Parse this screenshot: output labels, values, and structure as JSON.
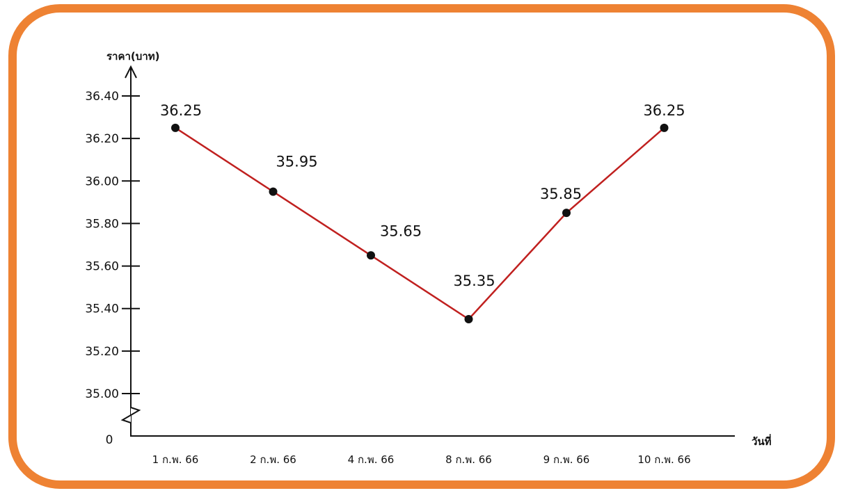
{
  "colors": {
    "frame": "#ee8233",
    "line": "#c0201f",
    "point": "#111111",
    "axis": "#111111"
  },
  "chart_data": {
    "type": "line",
    "ylabel": "ราคา(บาท)",
    "xlabel": "วันที่",
    "categories": [
      "1 ก.พ. 66",
      "2 ก.พ. 66",
      "4 ก.พ. 66",
      "8 ก.พ. 66",
      "9 ก.พ. 66",
      "10 ก.พ. 66"
    ],
    "values": [
      36.25,
      35.95,
      35.65,
      35.35,
      35.85,
      36.25
    ],
    "data_labels": [
      "36.25",
      "35.95",
      "35.65",
      "35.35",
      "35.85",
      "36.25"
    ],
    "y_ticks": [
      35.0,
      35.2,
      35.4,
      35.6,
      35.8,
      36.0,
      36.2,
      36.4
    ],
    "y_tick_labels": [
      "35.00",
      "35.20",
      "35.40",
      "35.60",
      "35.80",
      "36.00",
      "36.20",
      "36.40"
    ],
    "y_origin_label": "0",
    "ylim": [
      35.0,
      36.4
    ],
    "axis_break": true,
    "grid": false,
    "legend": "none"
  }
}
